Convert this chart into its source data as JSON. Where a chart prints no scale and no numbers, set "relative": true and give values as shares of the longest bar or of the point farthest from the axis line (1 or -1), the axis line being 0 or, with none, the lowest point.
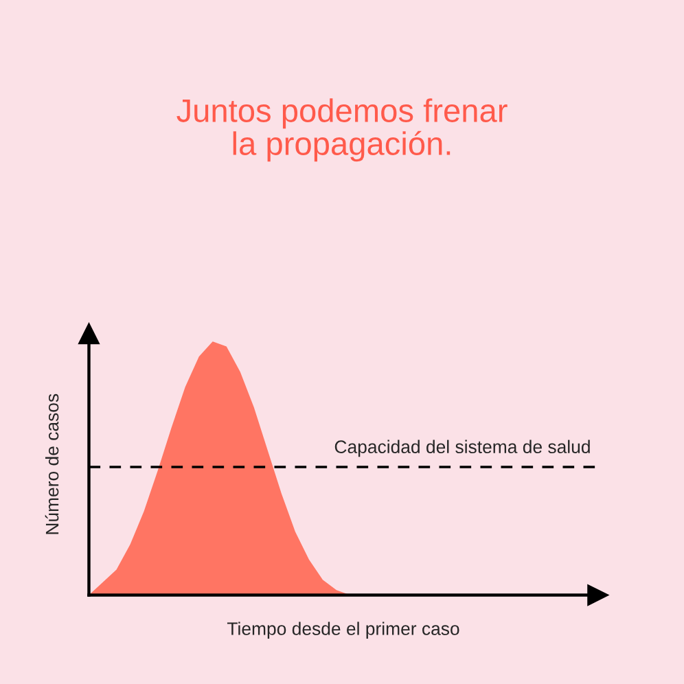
{
  "chart_data": {
    "type": "area",
    "title": "Juntos podemos frenar\nla propagación.",
    "xlabel": "Tiempo desde el primer caso",
    "ylabel": "Número de casos",
    "relative": true,
    "categories": [
      null,
      null,
      null,
      null,
      null,
      null,
      null,
      null,
      null,
      null,
      null,
      null,
      null,
      null,
      null,
      null,
      null,
      null,
      null,
      null,
      null,
      null,
      null,
      null,
      null,
      null,
      null,
      null,
      null,
      null,
      null,
      null,
      null,
      null,
      null,
      null,
      null,
      null
    ],
    "series": [
      {
        "color": "#ff7563",
        "values": [
          0,
          0.05,
          0.1,
          0.2,
          0.33,
          0.49,
          0.66,
          0.82,
          0.94,
          1.0,
          0.98,
          0.88,
          0.74,
          0.57,
          0.4,
          0.25,
          0.14,
          0.06,
          0.02,
          0,
          0,
          0,
          0,
          0,
          0,
          0,
          0,
          0,
          0,
          0,
          0,
          0,
          0,
          0,
          0,
          0,
          0,
          0
        ]
      }
    ],
    "ref_lines": [
      {
        "axis": "y",
        "value": 0.505,
        "label": "Capacidad del sistema de salud",
        "color": "#000000",
        "line_style": "dashed"
      }
    ]
  }
}
